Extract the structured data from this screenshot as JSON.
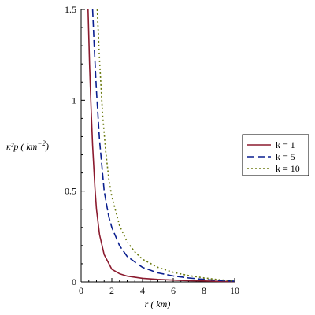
{
  "chart_data": {
    "type": "line",
    "xlabel": "r ( km)",
    "ylabel_main": "κ²p ( km",
    "ylabel_exp": "−2",
    "ylabel_close": ")",
    "xlim": [
      0,
      10
    ],
    "ylim": [
      0,
      1.5
    ],
    "x_ticks": [
      0,
      2,
      4,
      6,
      8,
      10
    ],
    "x_tick_labels": [
      "0",
      "2",
      "4",
      "6",
      "8",
      "10"
    ],
    "y_ticks": [
      0,
      0.5,
      1,
      1.5
    ],
    "y_tick_labels": [
      "0",
      "0.5",
      "1",
      "1.5"
    ],
    "grid": false,
    "legend_position": "right",
    "series": [
      {
        "name": "k = 1",
        "color": "#8b1a2e",
        "dash": "solid",
        "x": [
          0.45,
          0.55,
          0.65,
          0.75,
          0.9,
          1.0,
          1.2,
          1.5,
          2.0,
          2.5,
          3.0,
          4.0,
          5.0,
          6.0,
          7.0,
          8.0,
          9.0,
          10.0
        ],
        "y": [
          1.5,
          1.2,
          0.95,
          0.75,
          0.52,
          0.4,
          0.26,
          0.15,
          0.07,
          0.045,
          0.032,
          0.02,
          0.014,
          0.01,
          0.007,
          0.005,
          0.003,
          0.002
        ]
      },
      {
        "name": "k = 5",
        "color": "#0a1f8f",
        "dash": "long-dash",
        "x": [
          0.75,
          0.85,
          1.0,
          1.2,
          1.5,
          1.8,
          2.0,
          2.5,
          3.0,
          4.0,
          5.0,
          6.0,
          7.0,
          8.0,
          9.0,
          10.0
        ],
        "y": [
          1.5,
          1.3,
          1.05,
          0.78,
          0.5,
          0.36,
          0.3,
          0.2,
          0.14,
          0.08,
          0.05,
          0.033,
          0.022,
          0.014,
          0.008,
          0.004
        ]
      },
      {
        "name": "k = 10",
        "color": "#6b7a10",
        "dash": "dotted",
        "x": [
          1.05,
          1.2,
          1.4,
          1.6,
          1.8,
          2.0,
          2.5,
          3.0,
          3.5,
          4.0,
          5.0,
          6.0,
          7.0,
          8.0,
          9.0,
          10.0
        ],
        "y": [
          1.5,
          1.22,
          0.92,
          0.72,
          0.57,
          0.47,
          0.31,
          0.22,
          0.165,
          0.125,
          0.08,
          0.053,
          0.035,
          0.022,
          0.012,
          0.005
        ]
      }
    ]
  }
}
